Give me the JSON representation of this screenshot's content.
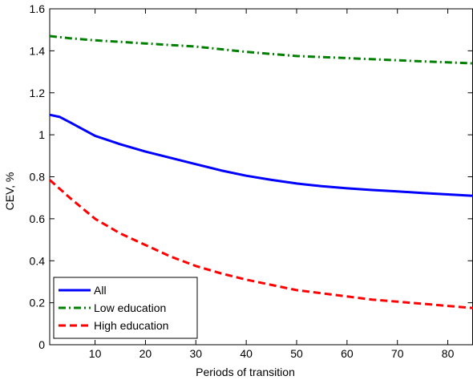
{
  "chart_data": {
    "type": "line",
    "title": "",
    "xlabel": "Periods of transition",
    "ylabel": "CEV, %",
    "xlim": [
      1,
      85
    ],
    "ylim": [
      0,
      1.6
    ],
    "xticks": [
      10,
      20,
      30,
      40,
      50,
      60,
      70,
      80
    ],
    "yticks": [
      0,
      0.2,
      0.4,
      0.6,
      0.8,
      1,
      1.2,
      1.4,
      1.6
    ],
    "ytick_labels": [
      "0",
      "0.2",
      "0.4",
      "0.6",
      "0.8",
      "1",
      "1.2",
      "1.4",
      "1.6"
    ],
    "grid": false,
    "legend_position": "bottom-left",
    "series": [
      {
        "name": "All",
        "color": "#0000ff",
        "style": "solid",
        "x": [
          1,
          3,
          5,
          10,
          15,
          20,
          25,
          30,
          35,
          40,
          45,
          50,
          55,
          60,
          65,
          70,
          75,
          80,
          85
        ],
        "y": [
          1.095,
          1.085,
          1.06,
          0.995,
          0.955,
          0.92,
          0.89,
          0.86,
          0.83,
          0.805,
          0.785,
          0.768,
          0.755,
          0.745,
          0.737,
          0.73,
          0.723,
          0.716,
          0.709
        ]
      },
      {
        "name": "Low education",
        "color": "#008000",
        "style": "dashdot",
        "x": [
          1,
          5,
          10,
          20,
          30,
          40,
          50,
          60,
          70,
          80,
          85
        ],
        "y": [
          1.47,
          1.46,
          1.45,
          1.435,
          1.42,
          1.395,
          1.375,
          1.365,
          1.355,
          1.345,
          1.34
        ]
      },
      {
        "name": "High education",
        "color": "#ff0000",
        "style": "dashed",
        "x": [
          1,
          5,
          10,
          15,
          20,
          25,
          30,
          35,
          40,
          45,
          50,
          55,
          60,
          65,
          70,
          75,
          80,
          85
        ],
        "y": [
          0.785,
          0.7,
          0.6,
          0.53,
          0.475,
          0.42,
          0.375,
          0.34,
          0.31,
          0.285,
          0.26,
          0.245,
          0.23,
          0.215,
          0.205,
          0.195,
          0.185,
          0.175
        ]
      }
    ]
  }
}
